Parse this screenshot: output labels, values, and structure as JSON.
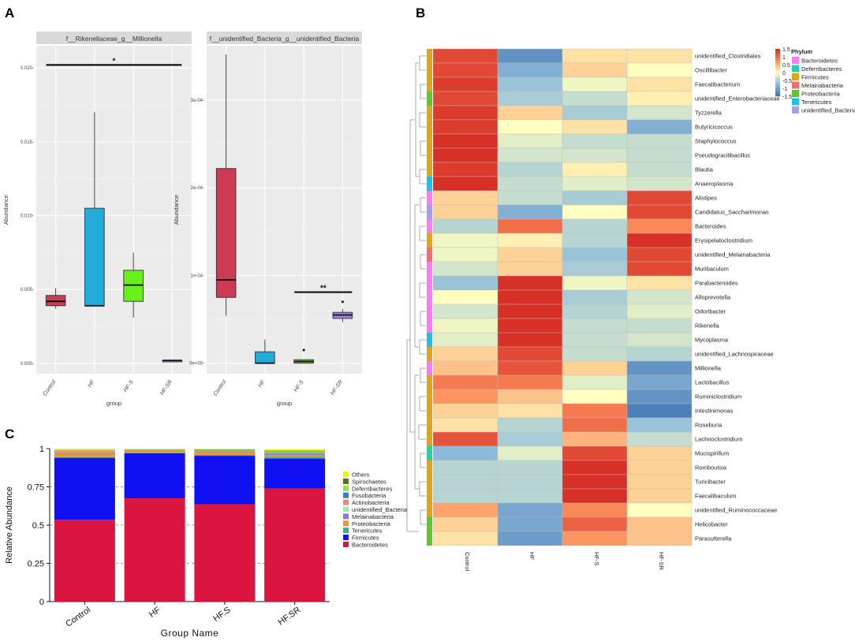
{
  "panel_labels": {
    "a": "A",
    "b": "B",
    "c": "C"
  },
  "colors": {
    "group": {
      "Control": "#cc3a55",
      "HF": "#23acd8",
      "HF-S": "#66f219",
      "HF-SR": "#9d84d8"
    },
    "phylum": {
      "Bacteroidetes": "#f47ff0",
      "Deferribacteres": "#27cfa8",
      "Firmicutes": "#dca51a",
      "Melainabacteria": "#ef6f6f",
      "Proteobacteria": "#63c52e",
      "Tenericutes": "#1fc0e6",
      "unidentified_Bacteria": "#aa9be6"
    },
    "panelC": {
      "Others": "#f7ef18",
      "Spirochaetes": "#5a6e1e",
      "Deferribacteres": "#85e83b",
      "Fusobacteria": "#2b7fd4",
      "Actinobacteria": "#f28473",
      "unidentified_Bacteria": "#9ef0a8",
      "Melainabacteria": "#8b77d8",
      "Proteobacteria": "#f09428",
      "Tenericutes": "#2cb29a",
      "Firmicutes": "#1010f2",
      "Bacteroidetes": "#dc1440"
    }
  },
  "chart_data": [
    {
      "id": "A1",
      "type": "box",
      "title": "f__Rikenellaceae_g__Millionella",
      "xlabel": "group",
      "ylabel": "Abundance",
      "categories": [
        "Control",
        "HF",
        "HF-S",
        "HF-SR"
      ],
      "ylim": [
        -0.0007,
        0.0215
      ],
      "yticks": [
        0.0,
        0.005,
        0.01,
        0.015,
        0.02
      ],
      "ytick_labels": [
        "0.000-",
        "0.005-",
        "0.010-",
        "0.015-",
        "0.020-"
      ],
      "boxes": [
        {
          "group": "Control",
          "min": 0.0037,
          "q1": 0.0039,
          "median": 0.0042,
          "q3": 0.0046,
          "max": 0.0051
        },
        {
          "group": "HF",
          "min": 0.0039,
          "q1": 0.0039,
          "median": 0.0039,
          "q3": 0.0105,
          "max": 0.017
        },
        {
          "group": "HF-S",
          "min": 0.0031,
          "q1": 0.0042,
          "median": 0.0053,
          "q3": 0.0063,
          "max": 0.0075
        },
        {
          "group": "HF-SR",
          "min": 0.0001,
          "q1": 0.0001,
          "median": 0.0002,
          "q3": 0.0002,
          "max": 0.0002
        }
      ],
      "significance": [
        {
          "from": "Control",
          "to": "HF-SR",
          "label": "*",
          "y": 0.0202
        }
      ]
    },
    {
      "id": "A2",
      "type": "box",
      "title": "f__unidentified_Bacteria_g__unidentified_Bacteria",
      "xlabel": "group",
      "ylabel": "Abundance",
      "categories": [
        "Control",
        "HF",
        "HF-S",
        "HF-SR"
      ],
      "ylim": [
        -1.2e-05,
        0.000362
      ],
      "yticks": [
        0.0,
        0.0001,
        0.0002,
        0.0003
      ],
      "ytick_labels": [
        "0e+00-",
        "1e-04-",
        "2e-04-",
        "3e-04-"
      ],
      "boxes": [
        {
          "group": "Control",
          "min": 5.4e-05,
          "q1": 7.5e-05,
          "median": 9.5e-05,
          "q3": 0.000222,
          "max": 0.000352
        },
        {
          "group": "HF",
          "min": 0.0,
          "q1": 0.0,
          "median": 0.0,
          "q3": 1.3e-05,
          "max": 2.7e-05
        },
        {
          "group": "HF-S",
          "min": 0.0,
          "q1": 0.0,
          "median": 2e-06,
          "q3": 4e-06,
          "max": 4e-06,
          "outliers": [
            1.5e-05
          ]
        },
        {
          "group": "HF-SR",
          "min": 4.7e-05,
          "q1": 5.1e-05,
          "median": 5.5e-05,
          "q3": 5.8e-05,
          "max": 6.2e-05,
          "outliers": [
            7e-05
          ]
        }
      ],
      "significance": [
        {
          "from": "HF-S",
          "to": "HF-SR",
          "label": "**",
          "y": 8.1e-05
        }
      ]
    },
    {
      "id": "B",
      "type": "heatmap",
      "columns": [
        "Control",
        "HF",
        "HF-S",
        "HF-SR"
      ],
      "rows": [
        "unidentified_Clostridiales",
        "Oscillibacter",
        "Faecalibacterium",
        "unidentified_Enterobacteriaceae",
        "Tyzzerella",
        "Butyricicoccus",
        "Staphylococcus",
        "Pseudogracilibacillus",
        "Blautia",
        "Anaeroplasma",
        "Alistipes",
        "Candidatus_Saccharimonas",
        "Bacteroides",
        "Erysipelatoclostridium",
        "unidentified_Melainabacteria",
        "Muribaculum",
        "Parabacteroides",
        "Alloprevotella",
        "Odoribacter",
        "Rikenella",
        "Mycoplasma",
        "unidentified_Lachnospiraceae",
        "Millionella",
        "Lactobacillus",
        "Ruminiclostridium",
        "Intestinimonas",
        "Roseburia",
        "Lachnoclostridium",
        "Mucispirillum",
        "Romboutsia",
        "Turicibacter",
        "Faecalibaculum",
        "unidentified_Ruminococcaceae",
        "Helicobacter",
        "Parasutterella"
      ],
      "phylum": [
        "Firmicutes",
        "Firmicutes",
        "Firmicutes",
        "Proteobacteria",
        "Firmicutes",
        "Firmicutes",
        "Firmicutes",
        "Firmicutes",
        "Firmicutes",
        "Tenericutes",
        "Bacteroidetes",
        "unidentified_Bacteria",
        "Bacteroidetes",
        "Firmicutes",
        "Melainabacteria",
        "Bacteroidetes",
        "Bacteroidetes",
        "Bacteroidetes",
        "Bacteroidetes",
        "Bacteroidetes",
        "Tenericutes",
        "Firmicutes",
        "Bacteroidetes",
        "Firmicutes",
        "Firmicutes",
        "Firmicutes",
        "Firmicutes",
        "Firmicutes",
        "Deferribacteres",
        "Firmicutes",
        "Firmicutes",
        "Firmicutes",
        "Firmicutes",
        "Proteobacteria",
        "Proteobacteria"
      ],
      "values": [
        [
          1.3,
          -1.2,
          0.2,
          0.2
        ],
        [
          1.3,
          -0.9,
          0.3,
          0.0
        ],
        [
          1.4,
          -0.7,
          -0.1,
          0.2
        ],
        [
          1.3,
          -0.6,
          -0.4,
          0.1
        ],
        [
          1.4,
          0.3,
          -0.6,
          -0.3
        ],
        [
          1.4,
          0.0,
          0.2,
          -0.9
        ],
        [
          1.5,
          -0.2,
          -0.4,
          -0.4
        ],
        [
          1.5,
          -0.3,
          -0.3,
          -0.4
        ],
        [
          1.4,
          -0.5,
          0.1,
          -0.4
        ],
        [
          1.5,
          -0.4,
          -0.2,
          -0.3
        ],
        [
          0.3,
          -0.4,
          -0.6,
          1.3
        ],
        [
          0.3,
          -0.9,
          0.0,
          1.3
        ],
        [
          -0.5,
          1.0,
          -0.5,
          0.8
        ],
        [
          -0.1,
          0.1,
          -0.5,
          1.5
        ],
        [
          -0.1,
          0.3,
          -0.7,
          1.3
        ],
        [
          -0.3,
          0.3,
          -0.6,
          1.3
        ],
        [
          -0.7,
          1.5,
          -0.1,
          0.2
        ],
        [
          0.0,
          1.5,
          -0.6,
          -0.3
        ],
        [
          -0.3,
          1.5,
          -0.5,
          -0.2
        ],
        [
          -0.1,
          1.5,
          -0.4,
          -0.4
        ],
        [
          -0.2,
          1.5,
          -0.4,
          -0.3
        ],
        [
          0.3,
          1.3,
          -0.4,
          -0.5
        ],
        [
          0.4,
          1.2,
          0.3,
          -1.2
        ],
        [
          0.9,
          0.9,
          -0.2,
          -1.0
        ],
        [
          0.7,
          0.4,
          0.0,
          -1.2
        ],
        [
          0.3,
          0.2,
          0.9,
          -1.4
        ],
        [
          0.2,
          -0.5,
          1.0,
          -0.7
        ],
        [
          1.2,
          -0.6,
          0.5,
          -0.4
        ],
        [
          -0.8,
          -0.2,
          1.3,
          0.3
        ],
        [
          -0.5,
          -0.5,
          1.5,
          0.3
        ],
        [
          -0.5,
          -0.5,
          1.5,
          0.3
        ],
        [
          -0.5,
          -0.5,
          1.5,
          0.3
        ],
        [
          0.6,
          -1.0,
          0.8,
          0.0
        ],
        [
          0.3,
          -1.0,
          1.1,
          0.4
        ],
        [
          0.2,
          -1.1,
          0.7,
          0.4
        ]
      ],
      "scale": {
        "min": -1.5,
        "max": 1.5,
        "ticks": [
          "1.5",
          "1",
          "0.5",
          "0",
          "-0.5",
          "-1",
          "-1.5"
        ]
      },
      "legend": {
        "title": "Phylum",
        "items": [
          "Bacteroidetes",
          "Deferribacteres",
          "Firmicutes",
          "Melainabacteria",
          "Proteobacteria",
          "Tenericutes",
          "unidentified_Bacteria"
        ]
      }
    },
    {
      "id": "C",
      "type": "stacked_bar",
      "categories": [
        "Control",
        "HF",
        "HF.S",
        "HF.SR"
      ],
      "xlabel": "Group Name",
      "ylabel": "Relative Abundance",
      "ylim": [
        0,
        1
      ],
      "yticks": [
        0,
        0.25,
        0.5,
        0.75,
        1
      ],
      "ytick_labels": [
        "0",
        "0.25",
        "0.5",
        "0.75",
        "1"
      ],
      "series": [
        {
          "name": "Bacteroidetes",
          "values": [
            0.535,
            0.675,
            0.635,
            0.74
          ]
        },
        {
          "name": "Firmicutes",
          "values": [
            0.405,
            0.295,
            0.318,
            0.195
          ]
        },
        {
          "name": "Tenericutes",
          "values": [
            0.004,
            0.003,
            0.006,
            0.012
          ]
        },
        {
          "name": "Proteobacteria",
          "values": [
            0.028,
            0.012,
            0.015,
            0.012
          ]
        },
        {
          "name": "Melainabacteria",
          "values": [
            0.005,
            0.002,
            0.005,
            0.01
          ]
        },
        {
          "name": "unidentified_Bacteria",
          "values": [
            0.003,
            0.001,
            0.002,
            0.004
          ]
        },
        {
          "name": "Actinobacteria",
          "values": [
            0.004,
            0.002,
            0.003,
            0.003
          ]
        },
        {
          "name": "Fusobacteria",
          "values": [
            0.002,
            0.001,
            0.003,
            0.004
          ]
        },
        {
          "name": "Deferribacteres",
          "values": [
            0.003,
            0.002,
            0.006,
            0.007
          ]
        },
        {
          "name": "Spirochaetes",
          "values": [
            0.002,
            0.001,
            0.001,
            0.001
          ]
        },
        {
          "name": "Others",
          "values": [
            0.009,
            0.006,
            0.006,
            0.007
          ]
        }
      ],
      "legend": [
        "Others",
        "Spirochaetes",
        "Deferribacteres",
        "Fusobacteria",
        "Actinobacteria",
        "unidentified_Bacteria",
        "Melainabacteria",
        "Proteobacteria",
        "Tenericutes",
        "Firmicutes",
        "Bacteroidetes"
      ]
    }
  ]
}
